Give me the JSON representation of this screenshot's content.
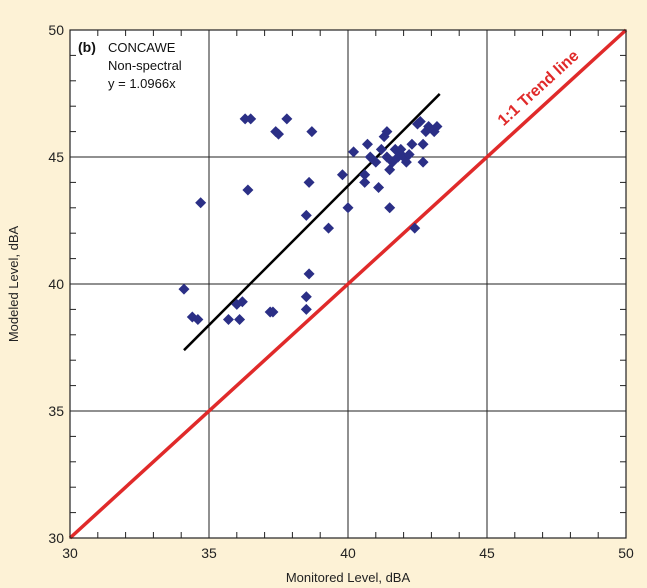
{
  "chart_data": {
    "type": "scatter",
    "panel_label": "(b)",
    "annotation_lines": [
      "CONCAWE",
      "Non-spectral",
      "y = 1.0966x"
    ],
    "trend_label": "1:1 Trend line",
    "xlabel": "Monitored Level, dBA",
    "ylabel": "Modeled Level, dBA",
    "xlim": [
      30,
      50
    ],
    "ylim": [
      30,
      50
    ],
    "x_ticks": [
      30,
      35,
      40,
      45,
      50
    ],
    "y_ticks": [
      30,
      35,
      40,
      45,
      50
    ],
    "grid": true,
    "points": [
      [
        34.1,
        39.8
      ],
      [
        34.4,
        38.7
      ],
      [
        34.6,
        38.6
      ],
      [
        34.7,
        43.2
      ],
      [
        35.7,
        38.6
      ],
      [
        36.0,
        39.2
      ],
      [
        36.1,
        38.6
      ],
      [
        36.2,
        39.3
      ],
      [
        36.3,
        46.5
      ],
      [
        36.4,
        43.7
      ],
      [
        36.5,
        46.5
      ],
      [
        37.2,
        38.9
      ],
      [
        37.3,
        38.9
      ],
      [
        37.4,
        46.0
      ],
      [
        37.5,
        45.9
      ],
      [
        37.8,
        46.5
      ],
      [
        38.5,
        39.0
      ],
      [
        38.5,
        39.5
      ],
      [
        38.5,
        42.7
      ],
      [
        38.6,
        40.4
      ],
      [
        38.6,
        44.0
      ],
      [
        38.7,
        46.0
      ],
      [
        39.3,
        42.2
      ],
      [
        39.8,
        44.3
      ],
      [
        40.0,
        43.0
      ],
      [
        40.2,
        45.2
      ],
      [
        40.6,
        44.3
      ],
      [
        40.6,
        44.0
      ],
      [
        40.7,
        45.5
      ],
      [
        40.8,
        45.0
      ],
      [
        41.0,
        44.8
      ],
      [
        41.1,
        43.8
      ],
      [
        41.2,
        45.3
      ],
      [
        41.3,
        45.8
      ],
      [
        41.4,
        46.0
      ],
      [
        41.4,
        45.0
      ],
      [
        41.5,
        44.5
      ],
      [
        41.5,
        43.0
      ],
      [
        41.6,
        44.8
      ],
      [
        41.7,
        45.3
      ],
      [
        41.8,
        45.0
      ],
      [
        41.9,
        45.3
      ],
      [
        42.0,
        45.0
      ],
      [
        42.1,
        44.8
      ],
      [
        42.2,
        45.1
      ],
      [
        42.3,
        45.5
      ],
      [
        42.4,
        42.2
      ],
      [
        42.5,
        46.3
      ],
      [
        42.6,
        46.4
      ],
      [
        42.7,
        45.5
      ],
      [
        42.7,
        44.8
      ],
      [
        42.8,
        46.0
      ],
      [
        42.9,
        46.2
      ],
      [
        43.1,
        46.0
      ],
      [
        43.2,
        46.2
      ]
    ],
    "fit_line": {
      "slope": 1.0966,
      "x_range": [
        34.1,
        43.3
      ]
    },
    "identity_line": {
      "x_range": [
        30,
        50
      ]
    },
    "colors": {
      "background": "#fdf2d6",
      "plot_bg": "#ffffff",
      "points": "#2b2f86",
      "fit_line": "#000000",
      "identity_line": "#e02a2a",
      "grid": "#222222"
    }
  }
}
